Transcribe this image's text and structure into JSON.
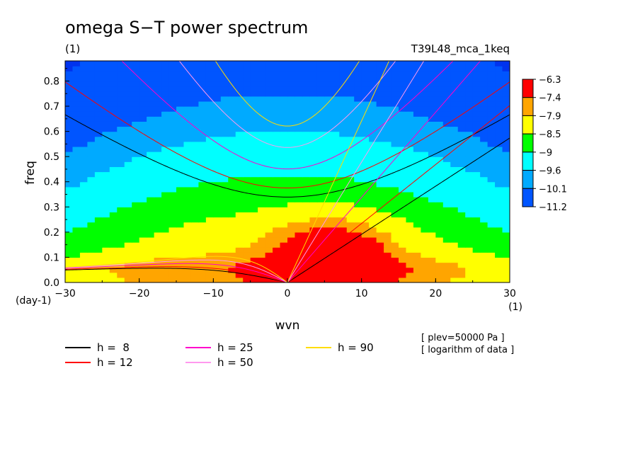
{
  "chart_data": {
    "type": "heatmap",
    "title": "omega S−T power spectrum",
    "subtitle_left": "(1)",
    "subtitle_right": "T39L48_mca_1keq",
    "xlabel": "wvn",
    "x_unit_label": "(1)",
    "ylabel": "freq",
    "y_unit_label": "(day-1)",
    "xlim": [
      -30,
      30
    ],
    "ylim": [
      0,
      0.88
    ],
    "xticks": [
      -30,
      -20,
      -10,
      0,
      10,
      20,
      30
    ],
    "yticks": [
      0.0,
      0.1,
      0.2,
      0.3,
      0.4,
      0.5,
      0.6,
      0.7,
      0.8
    ],
    "colorbar": {
      "labels": [
        "-6.3",
        "-7.4",
        "-7.9",
        "-8.5",
        "-9",
        "-9.6",
        "-10.1",
        "-11.2"
      ],
      "colors": [
        "#ff0000",
        "#ffa500",
        "#ffff00",
        "#00ff00",
        "#00ffff",
        "#00aaff",
        "#0055ff"
      ]
    },
    "field": {
      "description_levels": [
        -6.3,
        -7.4,
        -7.9,
        -8.5,
        -9,
        -9.6,
        -10.1,
        -11.2
      ],
      "peak": {
        "x": 6,
        "y": 0.1,
        "value": -6.0
      }
    },
    "dispersion_curves": {
      "equivalent_depths": [
        8,
        12,
        25,
        50,
        90
      ],
      "colors": [
        "#000000",
        "#ff0000",
        "#ff00cc",
        "#ff99ee",
        "#ffdd00"
      ],
      "kinds": [
        "kelvin",
        "rossby_n1",
        "inertia_gravity_n1"
      ]
    },
    "legend": [
      {
        "label": "h =  8",
        "color": "#000000"
      },
      {
        "label": "h = 12",
        "color": "#ff0000"
      },
      {
        "label": "h = 25",
        "color": "#ff00cc"
      },
      {
        "label": "h = 50",
        "color": "#ff99ee"
      },
      {
        "label": "h = 90",
        "color": "#ffdd00"
      }
    ],
    "notes": [
      "[ plev=50000 Pa ]",
      "[ logarithm of data ]"
    ],
    "grid": false
  }
}
